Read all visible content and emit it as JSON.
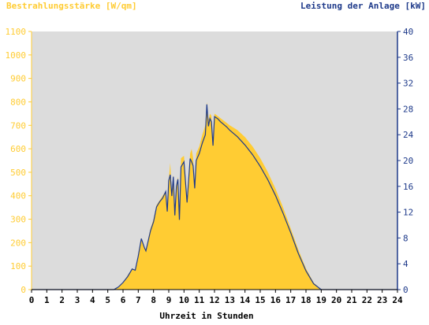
{
  "colors": {
    "plot_bg": "#dcdcdc",
    "irradiance_fill": "#ffcc33",
    "irradiance_tick": "#ffcc33",
    "power_line": "#1e3a8a",
    "power_tick": "#1e3a8a",
    "x_tick": "#000000"
  },
  "chart_data": {
    "type": "area",
    "ylabel_left": "Bestrahlungsstärke [W/qm]",
    "ylabel_right": "Leistung der Anlage [kW]",
    "xlabel": "Uhrzeit in Stunden",
    "xlim": [
      0,
      24
    ],
    "ylim_left": [
      0,
      1100
    ],
    "ylim_right": [
      0,
      40
    ],
    "x_ticks": [
      "0",
      "1",
      "2",
      "3",
      "4",
      "5",
      "6",
      "7",
      "8",
      "9",
      "10",
      "11",
      "12",
      "13",
      "14",
      "15",
      "16",
      "17",
      "18",
      "19",
      "20",
      "21",
      "22",
      "23",
      "24"
    ],
    "y_ticks_left": [
      "0",
      "100",
      "200",
      "300",
      "400",
      "500",
      "600",
      "700",
      "800",
      "900",
      "1000",
      "1100"
    ],
    "y_ticks_right": [
      "0",
      "4",
      "8",
      "12",
      "16",
      "20",
      "24",
      "28",
      "32",
      "36",
      "40"
    ],
    "grid": false,
    "series": [
      {
        "axis": "left",
        "kind": "area",
        "x": [
          0,
          5.4,
          5.7,
          6.0,
          6.3,
          6.6,
          6.8,
          7.0,
          7.2,
          7.4,
          7.5,
          7.6,
          7.8,
          8.0,
          8.2,
          8.4,
          8.6,
          8.8,
          8.9,
          9.0,
          9.1,
          9.2,
          9.3,
          9.4,
          9.5,
          9.6,
          9.7,
          9.8,
          10.0,
          10.2,
          10.4,
          10.5,
          10.6,
          10.7,
          10.8,
          11.0,
          11.2,
          11.4,
          11.5,
          11.6,
          11.7,
          11.8,
          11.9,
          12.0,
          12.2,
          12.4,
          12.6,
          12.8,
          13.0,
          13.5,
          14.0,
          14.5,
          15.0,
          15.5,
          16.0,
          16.5,
          17.0,
          17.5,
          18.0,
          18.5,
          19.0,
          19.3,
          19.5,
          19.8,
          20.0,
          24
        ],
        "y": [
          0,
          0,
          10,
          30,
          60,
          90,
          80,
          150,
          220,
          180,
          170,
          200,
          260,
          300,
          360,
          380,
          400,
          420,
          340,
          470,
          540,
          400,
          490,
          320,
          450,
          480,
          300,
          560,
          570,
          380,
          580,
          600,
          560,
          430,
          580,
          610,
          660,
          700,
          800,
          720,
          750,
          740,
          620,
          750,
          740,
          730,
          720,
          710,
          700,
          680,
          650,
          610,
          560,
          500,
          430,
          350,
          260,
          170,
          90,
          30,
          0,
          0,
          0,
          0,
          0,
          0
        ]
      },
      {
        "axis": "right",
        "kind": "line",
        "x": [
          0,
          5.4,
          5.7,
          6.0,
          6.3,
          6.6,
          6.8,
          7.0,
          7.2,
          7.4,
          7.5,
          7.6,
          7.8,
          8.0,
          8.2,
          8.4,
          8.6,
          8.8,
          8.9,
          9.0,
          9.1,
          9.2,
          9.3,
          9.4,
          9.5,
          9.6,
          9.7,
          9.8,
          10.0,
          10.2,
          10.4,
          10.5,
          10.6,
          10.7,
          10.8,
          11.0,
          11.2,
          11.4,
          11.5,
          11.6,
          11.7,
          11.8,
          11.9,
          12.0,
          12.2,
          12.4,
          12.6,
          12.8,
          13.0,
          13.5,
          14.0,
          14.5,
          15.0,
          15.5,
          16.0,
          16.5,
          17.0,
          17.5,
          18.0,
          18.5,
          19.0,
          19.3,
          19.5,
          19.8,
          20.0,
          24
        ],
        "y": [
          0,
          0,
          0.4,
          1.1,
          2.0,
          3.2,
          3.0,
          5.2,
          7.9,
          6.5,
          6.0,
          7.0,
          9.1,
          10.5,
          12.8,
          13.6,
          14.2,
          15.2,
          12.1,
          16.9,
          17.8,
          14.5,
          17.5,
          11.5,
          16.0,
          17.1,
          10.8,
          19.0,
          19.8,
          13.5,
          20.3,
          19.8,
          19.2,
          15.7,
          20.0,
          21.1,
          22.7,
          24.0,
          28.7,
          25.3,
          26.5,
          26.0,
          22.3,
          26.8,
          26.5,
          26.0,
          25.6,
          25.2,
          24.7,
          23.7,
          22.4,
          20.9,
          19.1,
          17.0,
          14.6,
          11.8,
          8.8,
          5.6,
          2.9,
          0.9,
          0,
          0,
          0,
          0,
          0,
          0
        ]
      }
    ]
  }
}
